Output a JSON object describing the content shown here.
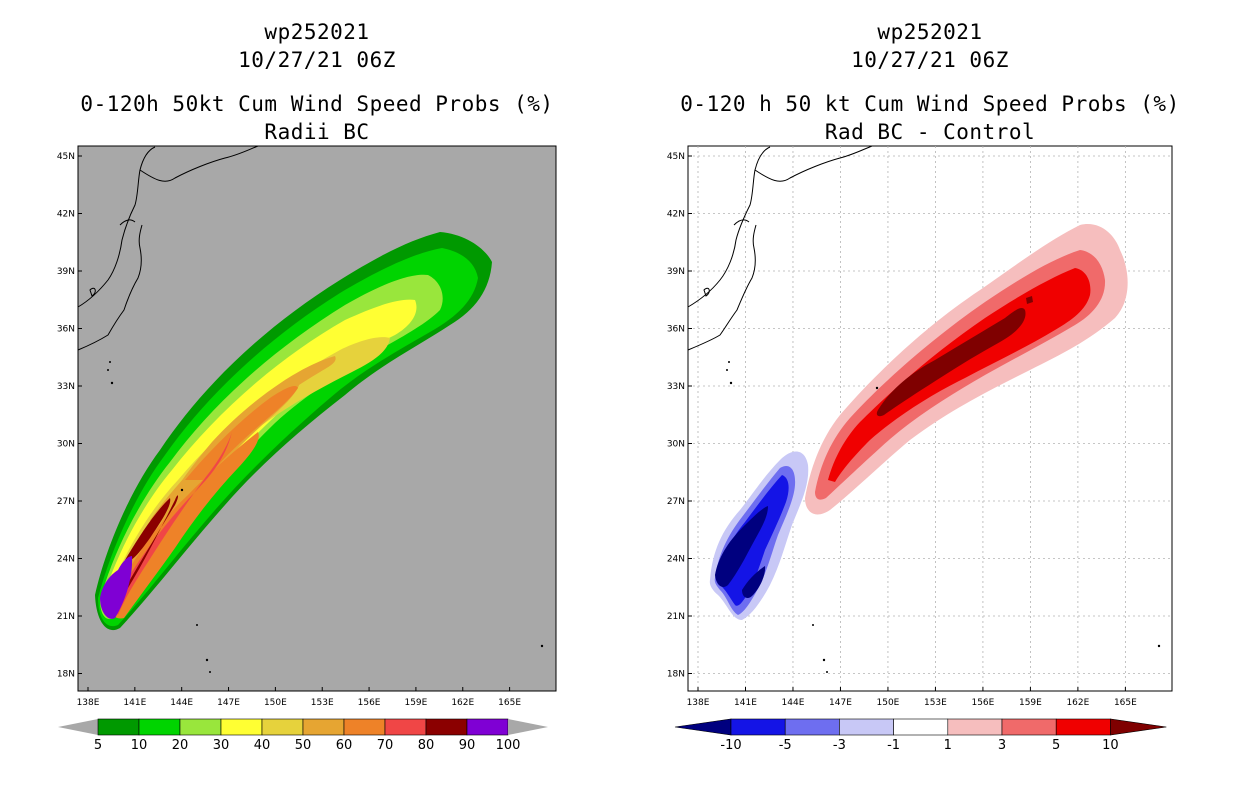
{
  "left": {
    "title": [
      "wp252021",
      "10/27/21 06Z"
    ],
    "subtitle": [
      "0-120h 50kt Cum Wind Speed Probs (%)",
      "Radii BC"
    ],
    "colorbar": {
      "labels": [
        "5",
        "10",
        "20",
        "30",
        "40",
        "50",
        "60",
        "70",
        "80",
        "90",
        "100"
      ],
      "colors": [
        "#009900",
        "#00d400",
        "#99e63c",
        "#ffff33",
        "#e6d23c",
        "#e6a532",
        "#ee8228",
        "#f04646",
        "#8b0000",
        "#7f00d4"
      ]
    }
  },
  "right": {
    "title": [
      "wp252021",
      "10/27/21 06Z"
    ],
    "subtitle": [
      "0-120 h 50 kt Cum Wind Speed Probs (%)",
      "Rad BC - Control"
    ],
    "colorbar": {
      "labels": [
        "-10",
        "-5",
        "-3",
        "-1",
        "1",
        "3",
        "5",
        "10"
      ],
      "colors": [
        "#00007f",
        "#1414e6",
        "#6e6ef0",
        "#c8c8f6",
        "#ffffff",
        "#f6bebe",
        "#f06a6a",
        "#f00000",
        "#7f0000"
      ]
    }
  },
  "axes": {
    "lat_labels": [
      "45N",
      "42N",
      "39N",
      "36N",
      "33N",
      "30N",
      "27N",
      "24N",
      "21N",
      "18N"
    ],
    "lon_labels": [
      "138E",
      "141E",
      "144E",
      "147E",
      "150E",
      "153E",
      "156E",
      "159E",
      "162E",
      "165E"
    ]
  },
  "palette": {
    "land_bg": "#a8a8a8",
    "outline": "#000000",
    "grid": "#b4b4b4"
  }
}
